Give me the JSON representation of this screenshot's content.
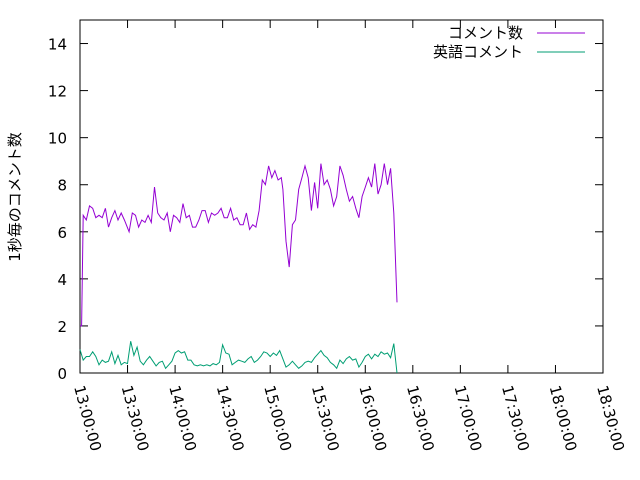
{
  "chart_data": {
    "type": "line",
    "ylabel": "1秒毎のコメント数",
    "xlabel": "",
    "ylim": [
      0,
      15
    ],
    "yticks": [
      0,
      2,
      4,
      6,
      8,
      10,
      12,
      14
    ],
    "xlim": [
      "13:00:00",
      "18:30:00"
    ],
    "xticks": [
      "13:00:00",
      "13:30:00",
      "14:00:00",
      "14:30:00",
      "15:00:00",
      "15:30:00",
      "16:00:00",
      "16:30:00",
      "17:00:00",
      "17:30:00",
      "18:00:00",
      "18:30:00"
    ],
    "grid": false,
    "legend_position": "top-right",
    "series": [
      {
        "name": "コメント数",
        "color": "#9400d3",
        "points": [
          [
            "13:00:00",
            2.0
          ],
          [
            "13:01:00",
            2.0
          ],
          [
            "13:02:00",
            6.7
          ],
          [
            "13:04:00",
            6.5
          ],
          [
            "13:06:00",
            7.1
          ],
          [
            "13:08:00",
            7.0
          ],
          [
            "13:10:00",
            6.6
          ],
          [
            "13:12:00",
            6.7
          ],
          [
            "13:14:00",
            6.6
          ],
          [
            "13:16:00",
            7.0
          ],
          [
            "13:18:00",
            6.2
          ],
          [
            "13:20:00",
            6.6
          ],
          [
            "13:22:00",
            6.9
          ],
          [
            "13:24:00",
            6.5
          ],
          [
            "13:26:00",
            6.8
          ],
          [
            "13:28:00",
            6.5
          ],
          [
            "13:31:00",
            6.0
          ],
          [
            "13:33:00",
            6.8
          ],
          [
            "13:35:00",
            6.7
          ],
          [
            "13:37:00",
            6.2
          ],
          [
            "13:39:00",
            6.5
          ],
          [
            "13:41:00",
            6.4
          ],
          [
            "13:43:00",
            6.7
          ],
          [
            "13:45:00",
            6.4
          ],
          [
            "13:47:00",
            7.9
          ],
          [
            "13:49:00",
            6.8
          ],
          [
            "13:51:00",
            6.6
          ],
          [
            "13:53:00",
            6.5
          ],
          [
            "13:55:00",
            6.8
          ],
          [
            "13:57:00",
            6.0
          ],
          [
            "13:59:00",
            6.7
          ],
          [
            "14:01:00",
            6.6
          ],
          [
            "14:03:00",
            6.4
          ],
          [
            "14:05:00",
            7.2
          ],
          [
            "14:07:00",
            6.6
          ],
          [
            "14:09:00",
            6.7
          ],
          [
            "14:11:00",
            6.2
          ],
          [
            "14:13:00",
            6.2
          ],
          [
            "14:15:00",
            6.5
          ],
          [
            "14:17:00",
            6.9
          ],
          [
            "14:19:00",
            6.9
          ],
          [
            "14:21:00",
            6.4
          ],
          [
            "14:23:00",
            6.8
          ],
          [
            "14:25:00",
            6.7
          ],
          [
            "14:27:00",
            6.8
          ],
          [
            "14:29:00",
            7.0
          ],
          [
            "14:31:00",
            6.6
          ],
          [
            "14:33:00",
            6.6
          ],
          [
            "14:35:00",
            7.0
          ],
          [
            "14:37:00",
            6.5
          ],
          [
            "14:39:00",
            6.6
          ],
          [
            "14:41:00",
            6.3
          ],
          [
            "14:43:00",
            6.3
          ],
          [
            "14:45:00",
            6.8
          ],
          [
            "14:47:00",
            6.1
          ],
          [
            "14:49:00",
            6.3
          ],
          [
            "14:51:00",
            6.2
          ],
          [
            "14:53:00",
            6.9
          ],
          [
            "14:55:00",
            8.2
          ],
          [
            "14:57:00",
            8.0
          ],
          [
            "14:59:00",
            8.8
          ],
          [
            "15:01:00",
            8.3
          ],
          [
            "15:03:00",
            8.6
          ],
          [
            "15:05:00",
            8.2
          ],
          [
            "15:07:00",
            8.3
          ],
          [
            "15:08:00",
            7.8
          ],
          [
            "15:10:00",
            5.6
          ],
          [
            "15:12:00",
            4.5
          ],
          [
            "15:14:00",
            6.3
          ],
          [
            "15:16:00",
            6.5
          ],
          [
            "15:18:00",
            7.8
          ],
          [
            "15:20:00",
            8.3
          ],
          [
            "15:22:00",
            8.8
          ],
          [
            "15:24:00",
            8.3
          ],
          [
            "15:26:00",
            6.9
          ],
          [
            "15:28:00",
            8.1
          ],
          [
            "15:30:00",
            7.0
          ],
          [
            "15:32:00",
            8.9
          ],
          [
            "15:34:00",
            8.0
          ],
          [
            "15:36:00",
            8.2
          ],
          [
            "15:38:00",
            7.8
          ],
          [
            "15:40:00",
            7.1
          ],
          [
            "15:42:00",
            7.5
          ],
          [
            "15:44:00",
            8.8
          ],
          [
            "15:46:00",
            8.4
          ],
          [
            "15:48:00",
            7.8
          ],
          [
            "15:50:00",
            7.3
          ],
          [
            "15:52:00",
            7.5
          ],
          [
            "15:54:00",
            7.0
          ],
          [
            "15:56:00",
            6.6
          ],
          [
            "15:58:00",
            7.5
          ],
          [
            "16:00:00",
            7.9
          ],
          [
            "16:02:00",
            8.3
          ],
          [
            "16:04:00",
            7.9
          ],
          [
            "16:06:00",
            8.9
          ],
          [
            "16:08:00",
            7.6
          ],
          [
            "16:10:00",
            8.0
          ],
          [
            "16:12:00",
            8.9
          ],
          [
            "16:14:00",
            8.0
          ],
          [
            "16:16:00",
            8.7
          ],
          [
            "16:18:00",
            6.8
          ],
          [
            "16:20:00",
            3.0
          ]
        ]
      },
      {
        "name": "英語コメント",
        "color": "#009e73",
        "points": [
          [
            "13:00:00",
            1.0
          ],
          [
            "13:02:00",
            0.55
          ],
          [
            "13:04:00",
            0.7
          ],
          [
            "13:06:00",
            0.7
          ],
          [
            "13:08:00",
            0.9
          ],
          [
            "13:10:00",
            0.7
          ],
          [
            "13:12:00",
            0.35
          ],
          [
            "13:14:00",
            0.55
          ],
          [
            "13:16:00",
            0.45
          ],
          [
            "13:18:00",
            0.5
          ],
          [
            "13:20:00",
            0.9
          ],
          [
            "13:22:00",
            0.4
          ],
          [
            "13:24:00",
            0.75
          ],
          [
            "13:26:00",
            0.35
          ],
          [
            "13:28:00",
            0.45
          ],
          [
            "13:30:00",
            0.4
          ],
          [
            "13:32:00",
            1.35
          ],
          [
            "13:34:00",
            0.75
          ],
          [
            "13:36:00",
            1.1
          ],
          [
            "13:38:00",
            0.5
          ],
          [
            "13:40:00",
            0.35
          ],
          [
            "13:42:00",
            0.55
          ],
          [
            "13:44:00",
            0.7
          ],
          [
            "13:46:00",
            0.5
          ],
          [
            "13:48:00",
            0.3
          ],
          [
            "13:50:00",
            0.45
          ],
          [
            "13:52:00",
            0.5
          ],
          [
            "13:54:00",
            0.2
          ],
          [
            "13:56:00",
            0.35
          ],
          [
            "13:58:00",
            0.5
          ],
          [
            "14:00:00",
            0.85
          ],
          [
            "14:02:00",
            0.95
          ],
          [
            "14:04:00",
            0.85
          ],
          [
            "14:06:00",
            0.9
          ],
          [
            "14:08:00",
            0.55
          ],
          [
            "14:10:00",
            0.55
          ],
          [
            "14:12:00",
            0.35
          ],
          [
            "14:14:00",
            0.3
          ],
          [
            "14:16:00",
            0.35
          ],
          [
            "14:18:00",
            0.3
          ],
          [
            "14:20:00",
            0.35
          ],
          [
            "14:22:00",
            0.3
          ],
          [
            "14:24:00",
            0.4
          ],
          [
            "14:26:00",
            0.35
          ],
          [
            "14:28:00",
            0.45
          ],
          [
            "14:30:00",
            1.2
          ],
          [
            "14:32:00",
            0.85
          ],
          [
            "14:34:00",
            0.8
          ],
          [
            "14:36:00",
            0.35
          ],
          [
            "14:38:00",
            0.45
          ],
          [
            "14:40:00",
            0.55
          ],
          [
            "14:42:00",
            0.5
          ],
          [
            "14:44:00",
            0.45
          ],
          [
            "14:46:00",
            0.6
          ],
          [
            "14:48:00",
            0.7
          ],
          [
            "14:50:00",
            0.45
          ],
          [
            "14:52:00",
            0.55
          ],
          [
            "14:54:00",
            0.7
          ],
          [
            "14:56:00",
            0.9
          ],
          [
            "14:58:00",
            0.85
          ],
          [
            "15:00:00",
            0.7
          ],
          [
            "15:02:00",
            0.85
          ],
          [
            "15:04:00",
            0.75
          ],
          [
            "15:06:00",
            0.95
          ],
          [
            "15:08:00",
            0.6
          ],
          [
            "15:10:00",
            0.25
          ],
          [
            "15:12:00",
            0.35
          ],
          [
            "15:14:00",
            0.5
          ],
          [
            "15:16:00",
            0.35
          ],
          [
            "15:18:00",
            0.2
          ],
          [
            "15:20:00",
            0.3
          ],
          [
            "15:22:00",
            0.45
          ],
          [
            "15:24:00",
            0.5
          ],
          [
            "15:26:00",
            0.45
          ],
          [
            "15:28:00",
            0.65
          ],
          [
            "15:30:00",
            0.8
          ],
          [
            "15:32:00",
            0.95
          ],
          [
            "15:34:00",
            0.75
          ],
          [
            "15:36:00",
            0.65
          ],
          [
            "15:38:00",
            0.45
          ],
          [
            "15:40:00",
            0.35
          ],
          [
            "15:42:00",
            0.2
          ],
          [
            "15:44:00",
            0.55
          ],
          [
            "15:46:00",
            0.4
          ],
          [
            "15:48:00",
            0.6
          ],
          [
            "15:50:00",
            0.7
          ],
          [
            "15:52:00",
            0.55
          ],
          [
            "15:54:00",
            0.6
          ],
          [
            "15:56:00",
            0.25
          ],
          [
            "15:58:00",
            0.45
          ],
          [
            "16:00:00",
            0.7
          ],
          [
            "16:02:00",
            0.8
          ],
          [
            "16:04:00",
            0.6
          ],
          [
            "16:06:00",
            0.8
          ],
          [
            "16:08:00",
            0.7
          ],
          [
            "16:10:00",
            0.9
          ],
          [
            "16:12:00",
            0.8
          ],
          [
            "16:14:00",
            0.85
          ],
          [
            "16:16:00",
            0.65
          ],
          [
            "16:18:00",
            1.25
          ],
          [
            "16:20:00",
            0.0
          ]
        ]
      }
    ]
  }
}
